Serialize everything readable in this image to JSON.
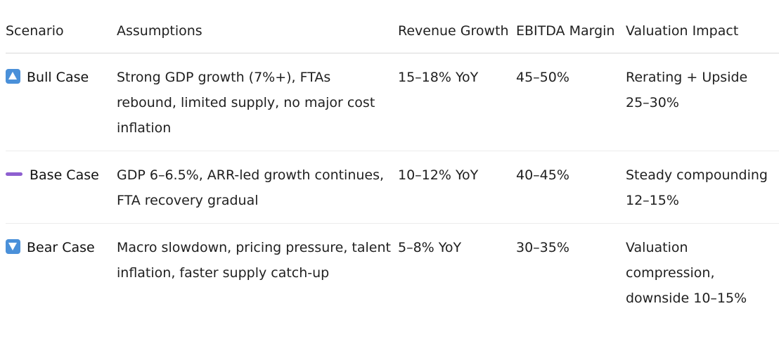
{
  "table": {
    "headers": {
      "scenario": "Scenario",
      "assumptions": "Assumptions",
      "revenue_growth": "Revenue Growth",
      "ebitda_margin": "EBITDA Margin",
      "valuation_impact": "Valuation Impact"
    },
    "rows": [
      {
        "icon": "up-arrow-icon",
        "scenario": "Bull Case",
        "assumptions": "Strong GDP growth (7%+), FTAs rebound, limited supply, no major cost inflation",
        "revenue_growth": "15–18% YoY",
        "ebitda_margin": "45–50%",
        "valuation_impact": "Rerating + Upside 25–30%"
      },
      {
        "icon": "minus-icon",
        "scenario": "Base Case",
        "assumptions": "GDP 6–6.5%, ARR-led growth continues, FTA recovery gradual",
        "revenue_growth": "10–12% YoY",
        "ebitda_margin": "40–45%",
        "valuation_impact": "Steady compounding 12–15%"
      },
      {
        "icon": "down-arrow-icon",
        "scenario": "Bear Case",
        "assumptions": "Macro slowdown, pricing pressure, talent inflation, faster supply catch-up",
        "revenue_growth": "5–8% YoY",
        "ebitda_margin": "30–35%",
        "valuation_impact": "Valuation compression, downside 10–15%"
      }
    ]
  },
  "colors": {
    "arrow_icon_bg": "#4a90d9",
    "dash_icon": "#8e5fd0",
    "text": "#1f1f1f",
    "divider": "#d9d9d9"
  }
}
